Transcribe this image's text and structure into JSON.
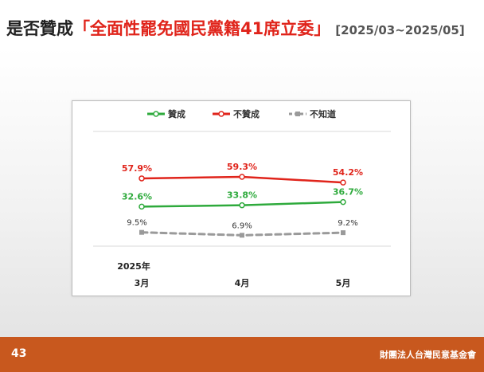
{
  "header": {
    "title_prefix": "是否贊成",
    "title_highlight": "「全面性罷免國民黨籍41席立委」",
    "date_range": "[2025/03~2025/05]"
  },
  "footer": {
    "page_number": "43",
    "organization": "財團法人台灣民意基金會"
  },
  "chart_data": {
    "type": "line",
    "year_label": "2025年",
    "categories": [
      "3月",
      "4月",
      "5月"
    ],
    "series": [
      {
        "name": "贊成",
        "color": "#2eaa3c",
        "dashed": false,
        "values": [
          32.6,
          33.8,
          36.7
        ],
        "labels": [
          "32.6%",
          "33.8%",
          "36.7%"
        ]
      },
      {
        "name": "不贊成",
        "color": "#e0241b",
        "dashed": false,
        "values": [
          57.9,
          59.3,
          54.2
        ],
        "labels": [
          "57.9%",
          "59.3%",
          "54.2%"
        ]
      },
      {
        "name": "不知道",
        "color": "#9a9a9a",
        "dashed": true,
        "values": [
          9.5,
          6.9,
          9.2
        ],
        "labels": [
          "9.5%",
          "6.9%",
          "9.2%"
        ]
      }
    ],
    "ylim": [
      0,
      100
    ],
    "legend_position": "top",
    "grid": false
  }
}
